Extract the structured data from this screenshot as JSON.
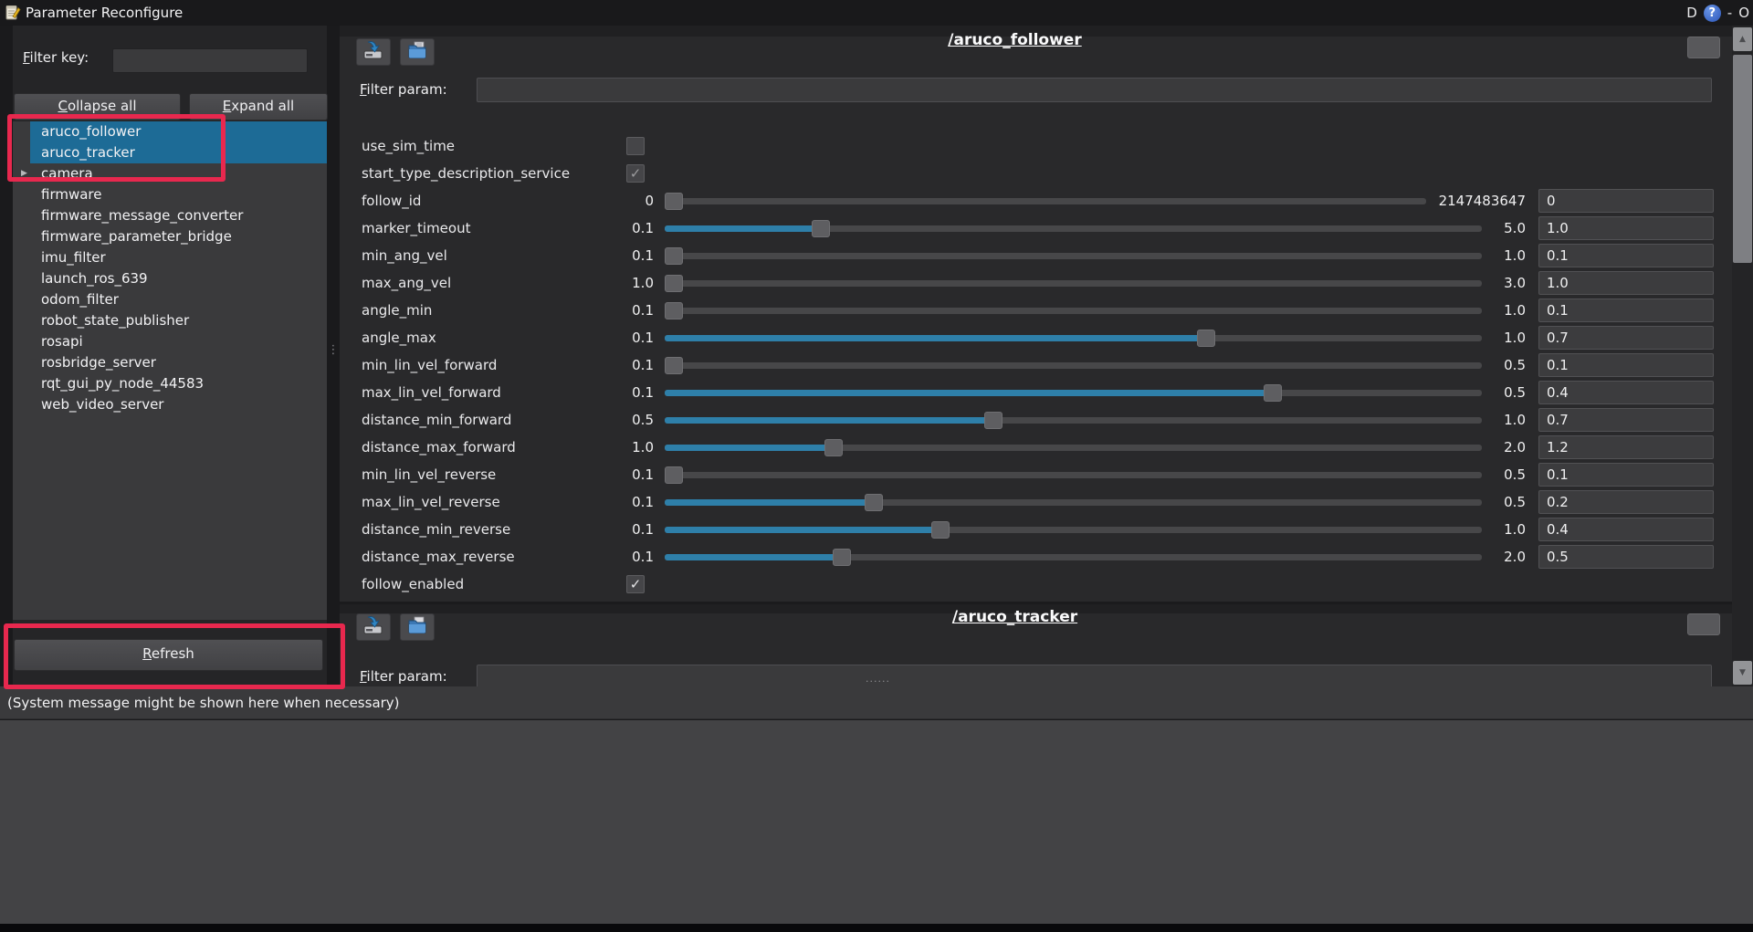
{
  "window": {
    "title": "Parameter Reconfigure",
    "controls": {
      "dock": "D",
      "help": "?",
      "minimize": "-",
      "close": "O"
    }
  },
  "sidebar": {
    "filter_key": {
      "label": "Filter key:",
      "value": ""
    },
    "buttons": {
      "collapse_all": "Collapse all",
      "expand_all": "Expand all",
      "refresh": "Refresh"
    },
    "tree": [
      {
        "label": "aruco_follower",
        "selected": true
      },
      {
        "label": "aruco_tracker",
        "selected": true
      },
      {
        "label": "camera",
        "expander": true
      },
      {
        "label": "firmware"
      },
      {
        "label": "firmware_message_converter"
      },
      {
        "label": "firmware_parameter_bridge"
      },
      {
        "label": "imu_filter"
      },
      {
        "label": "launch_ros_639"
      },
      {
        "label": "odom_filter"
      },
      {
        "label": "robot_state_publisher"
      },
      {
        "label": "rosapi"
      },
      {
        "label": "rosbridge_server"
      },
      {
        "label": "rqt_gui_py_node_44583"
      },
      {
        "label": "web_video_server"
      }
    ]
  },
  "panels": [
    {
      "title": "/aruco_follower",
      "filter_param": {
        "label": "Filter param:",
        "value": ""
      },
      "toolbar_icons": [
        "save-to-file",
        "load-from-file"
      ],
      "params": [
        {
          "name": "use_sim_time",
          "type": "bool",
          "checked": false
        },
        {
          "name": "start_type_description_service",
          "type": "bool",
          "checked": true,
          "muted": true
        },
        {
          "name": "follow_id",
          "type": "slider",
          "min": "0",
          "max": "2147483647",
          "value": "0"
        },
        {
          "name": "marker_timeout",
          "type": "slider",
          "min": "0.1",
          "max": "5.0",
          "value": "1.0"
        },
        {
          "name": "min_ang_vel",
          "type": "slider",
          "min": "0.1",
          "max": "1.0",
          "value": "0.1"
        },
        {
          "name": "max_ang_vel",
          "type": "slider",
          "min": "1.0",
          "max": "3.0",
          "value": "1.0"
        },
        {
          "name": "angle_min",
          "type": "slider",
          "min": "0.1",
          "max": "1.0",
          "value": "0.1"
        },
        {
          "name": "angle_max",
          "type": "slider",
          "min": "0.1",
          "max": "1.0",
          "value": "0.7"
        },
        {
          "name": "min_lin_vel_forward",
          "type": "slider",
          "min": "0.1",
          "max": "0.5",
          "value": "0.1"
        },
        {
          "name": "max_lin_vel_forward",
          "type": "slider",
          "min": "0.1",
          "max": "0.5",
          "value": "0.4"
        },
        {
          "name": "distance_min_forward",
          "type": "slider",
          "min": "0.5",
          "max": "1.0",
          "value": "0.7"
        },
        {
          "name": "distance_max_forward",
          "type": "slider",
          "min": "1.0",
          "max": "2.0",
          "value": "1.2"
        },
        {
          "name": "min_lin_vel_reverse",
          "type": "slider",
          "min": "0.1",
          "max": "0.5",
          "value": "0.1"
        },
        {
          "name": "max_lin_vel_reverse",
          "type": "slider",
          "min": "0.1",
          "max": "0.5",
          "value": "0.2"
        },
        {
          "name": "distance_min_reverse",
          "type": "slider",
          "min": "0.1",
          "max": "1.0",
          "value": "0.4"
        },
        {
          "name": "distance_max_reverse",
          "type": "slider",
          "min": "0.1",
          "max": "2.0",
          "value": "0.5"
        },
        {
          "name": "follow_enabled",
          "type": "bool",
          "checked": true
        }
      ]
    },
    {
      "title": "/aruco_tracker",
      "filter_param": {
        "label": "Filter param:",
        "value": ""
      },
      "toolbar_icons": [
        "save-to-file",
        "load-from-file"
      ]
    }
  ],
  "status": {
    "message": "(System message might be shown here when necessary)"
  },
  "colors": {
    "selection_blue": "#1d6b96",
    "slider_fill_blue": "#2e7fa9",
    "annotation_red": "#e8284e",
    "help_button_blue": "#3464c8"
  }
}
